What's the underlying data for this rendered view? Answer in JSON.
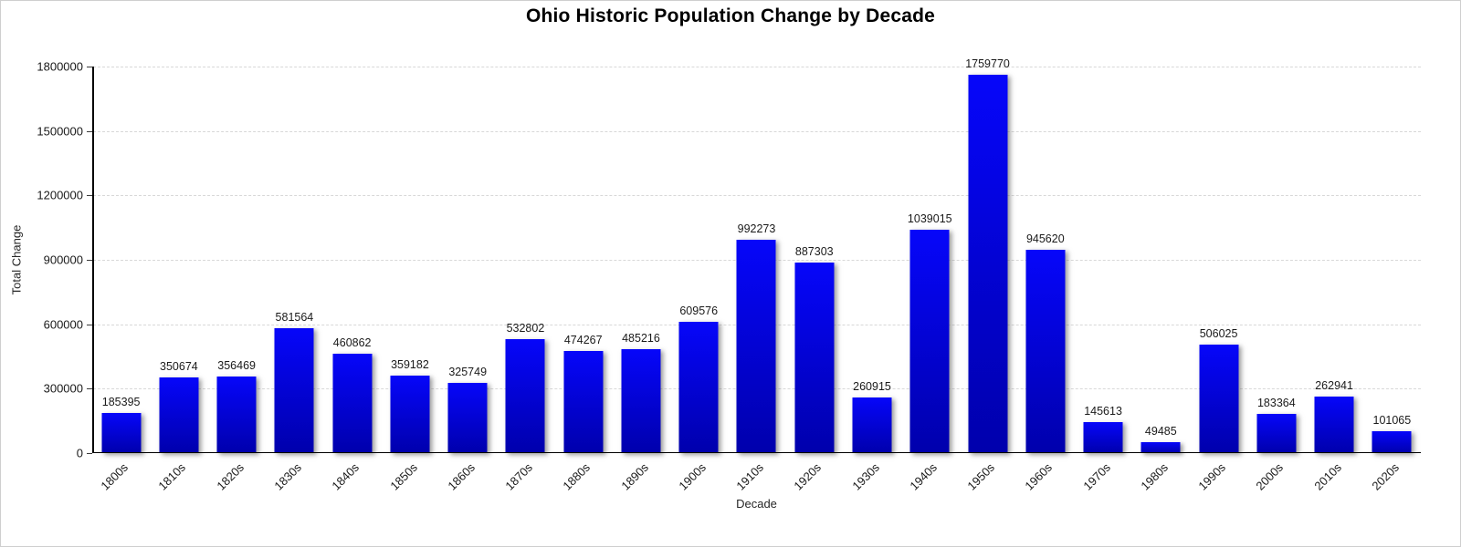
{
  "window": {
    "background": "#ffffff",
    "frame_border_color": "#cfcfcf"
  },
  "chart_data": {
    "type": "bar",
    "title": "Ohio Historic Population Change by Decade",
    "xlabel": "Decade",
    "ylabel": "Total Change",
    "categories": [
      "1800s",
      "1810s",
      "1820s",
      "1830s",
      "1840s",
      "1850s",
      "1860s",
      "1870s",
      "1880s",
      "1890s",
      "1900s",
      "1910s",
      "1920s",
      "1930s",
      "1940s",
      "1950s",
      "1960s",
      "1970s",
      "1980s",
      "1990s",
      "2000s",
      "2010s",
      "2020s"
    ],
    "values": [
      185395,
      350674,
      356469,
      581564,
      460862,
      359182,
      325749,
      532802,
      474267,
      485216,
      609576,
      992273,
      887303,
      260915,
      1039015,
      1759770,
      945620,
      145613,
      49485,
      506025,
      183364,
      262941,
      101065
    ],
    "ylim": [
      0,
      1800000
    ],
    "yticks": [
      0,
      300000,
      600000,
      900000,
      1200000,
      1500000,
      1800000
    ],
    "grid": "horizontal-dashed",
    "gridline_color": "#d8d8d8",
    "legend": "none",
    "bar_color_top": "#0606fa",
    "bar_color_bottom": "#0000ac",
    "bar_labels_shown": true,
    "axis_color": "#000000",
    "text_color": "#1a1a1a"
  }
}
